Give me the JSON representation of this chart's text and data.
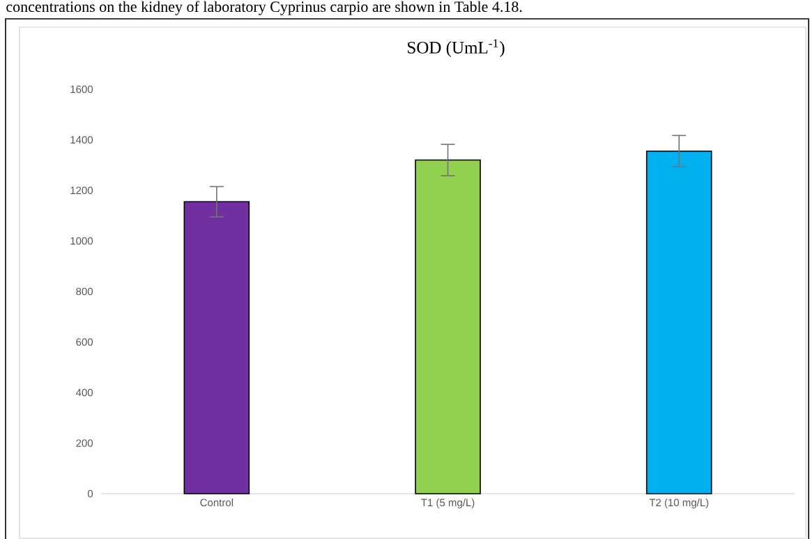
{
  "chart_data": {
    "type": "bar",
    "title": "SOD (UmL$^{-1}$)",
    "categories": [
      "Control",
      "T1 (5 mg/L)",
      "T2 (10 mg/L)"
    ],
    "values": [
      1155,
      1320,
      1355
    ],
    "errors": [
      60,
      62,
      62
    ],
    "colors": [
      "#7030a0",
      "#92d050",
      "#00b0f0"
    ],
    "ylim": [
      0,
      1600
    ],
    "yticks": [
      0,
      200,
      400,
      600,
      800,
      1000,
      1200,
      1400,
      1600
    ],
    "annotations": [
      "concentrations on the kidney of laboratory Cyprinus carpio are shown in Table 4.18."
    ]
  }
}
